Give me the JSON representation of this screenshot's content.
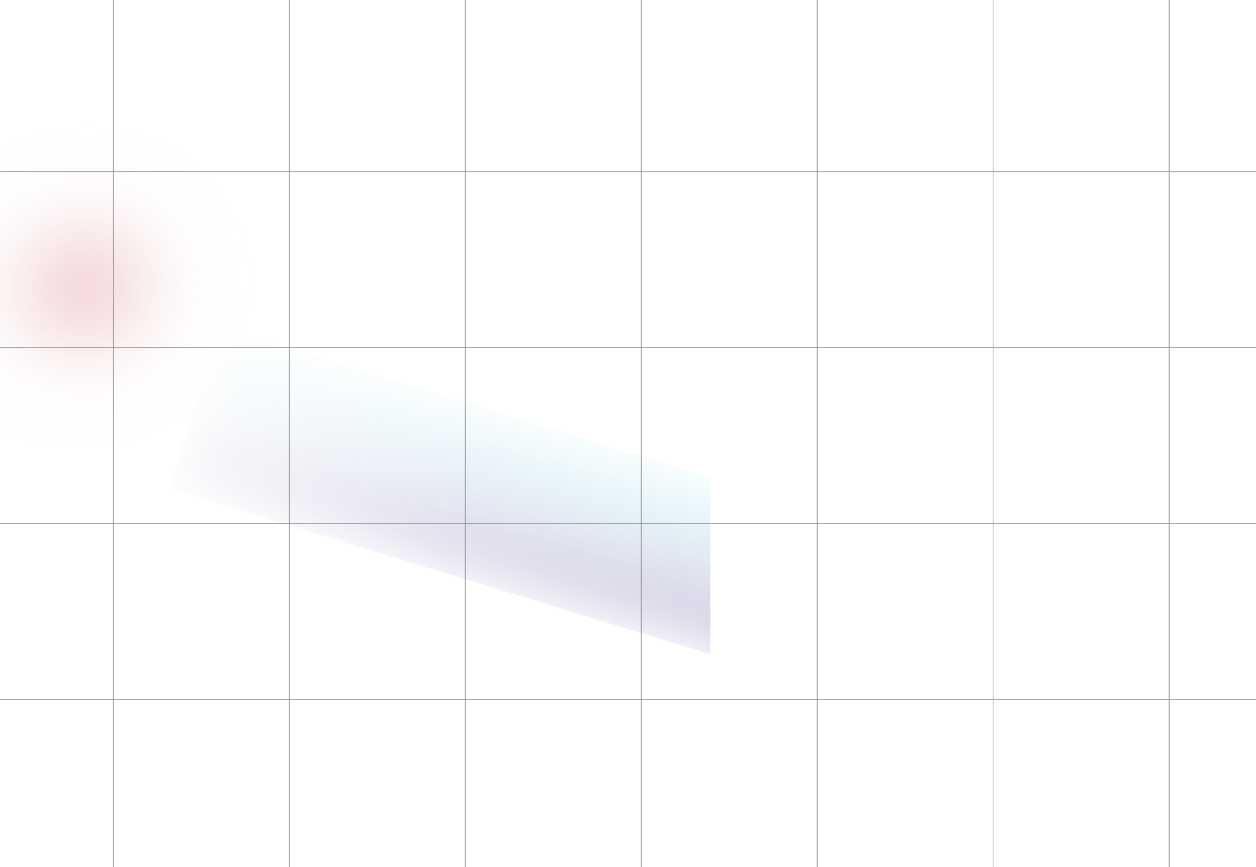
{
  "colors": {
    "background": "#ffffff",
    "grid_line": "#8a8a8a",
    "blob_red": "#ecbec4",
    "band_cyan": "#cdeef4",
    "band_violet": "#b9b4d4"
  },
  "grid": {
    "columns": 7,
    "rows": 5
  }
}
